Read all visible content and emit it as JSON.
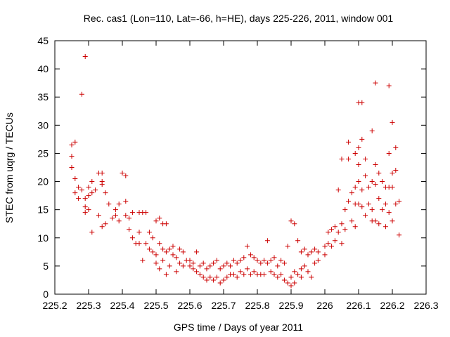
{
  "chart_data": {
    "type": "scatter",
    "title": "Rec. cas1 (Lon=110, Lat=-66, h=HE), days 225-226, 2011, window 001",
    "xlabel": "GPS time / Days of year 2011",
    "ylabel": "STEC from uqrg / TECUs",
    "xlim": [
      225.2,
      226.3
    ],
    "ylim": [
      0,
      45
    ],
    "xticks": [
      "225.2",
      "225.3",
      "225.4",
      "225.5",
      "225.6",
      "225.7",
      "225.8",
      "225.9",
      "226",
      "226.1",
      "226.2",
      "226.3"
    ],
    "yticks": [
      "0",
      "5",
      "10",
      "15",
      "20",
      "25",
      "30",
      "35",
      "40",
      "45"
    ],
    "grid": false,
    "marker": "plus",
    "color": "#cc0000",
    "series": [
      {
        "points": [
          [
            225.25,
            26.5
          ],
          [
            225.25,
            24.5
          ],
          [
            225.25,
            22.5
          ],
          [
            225.26,
            27
          ],
          [
            225.26,
            20.5
          ],
          [
            225.26,
            18
          ],
          [
            225.27,
            19
          ],
          [
            225.27,
            17
          ],
          [
            225.28,
            35.5
          ],
          [
            225.28,
            18.5
          ],
          [
            225.29,
            42.2
          ],
          [
            225.29,
            17
          ],
          [
            225.29,
            15.5
          ],
          [
            225.29,
            14.5
          ],
          [
            225.3,
            17.5
          ],
          [
            225.3,
            19
          ],
          [
            225.3,
            15
          ],
          [
            225.31,
            18
          ],
          [
            225.31,
            20
          ],
          [
            225.31,
            11
          ],
          [
            225.32,
            18.5
          ],
          [
            225.33,
            21.5
          ],
          [
            225.33,
            14
          ],
          [
            225.34,
            21.5
          ],
          [
            225.34,
            20
          ],
          [
            225.34,
            19.5
          ],
          [
            225.34,
            12
          ],
          [
            225.35,
            18
          ],
          [
            225.35,
            12.5
          ],
          [
            225.36,
            16
          ],
          [
            225.37,
            13.5
          ],
          [
            225.38,
            15
          ],
          [
            225.38,
            14
          ],
          [
            225.39,
            13
          ],
          [
            225.39,
            16
          ],
          [
            225.4,
            21.5
          ],
          [
            225.41,
            21
          ],
          [
            225.41,
            16.5
          ],
          [
            225.41,
            14
          ],
          [
            225.42,
            13.5
          ],
          [
            225.42,
            11.5
          ],
          [
            225.43,
            10
          ],
          [
            225.43,
            14.5
          ],
          [
            225.44,
            9
          ],
          [
            225.45,
            14.5
          ],
          [
            225.45,
            11
          ],
          [
            225.45,
            9
          ],
          [
            225.46,
            14.5
          ],
          [
            225.46,
            6
          ],
          [
            225.47,
            14.5
          ],
          [
            225.47,
            9
          ],
          [
            225.48,
            11
          ],
          [
            225.48,
            8
          ],
          [
            225.49,
            7.5
          ],
          [
            225.49,
            10
          ],
          [
            225.5,
            13
          ],
          [
            225.5,
            7
          ],
          [
            225.5,
            5.5
          ],
          [
            225.51,
            13.5
          ],
          [
            225.51,
            9
          ],
          [
            225.51,
            4.5
          ],
          [
            225.52,
            12.5
          ],
          [
            225.52,
            8
          ],
          [
            225.52,
            6
          ],
          [
            225.53,
            12.5
          ],
          [
            225.53,
            7.5
          ],
          [
            225.53,
            3.5
          ],
          [
            225.54,
            8
          ],
          [
            225.54,
            5
          ],
          [
            225.55,
            8.5
          ],
          [
            225.55,
            7
          ],
          [
            225.56,
            6.5
          ],
          [
            225.56,
            4
          ],
          [
            225.57,
            8
          ],
          [
            225.57,
            5.5
          ],
          [
            225.58,
            7.5
          ],
          [
            225.58,
            5
          ],
          [
            225.59,
            6
          ],
          [
            225.6,
            6
          ],
          [
            225.6,
            5
          ],
          [
            225.61,
            5.5
          ],
          [
            225.61,
            4.5
          ],
          [
            225.62,
            7.5
          ],
          [
            225.62,
            4
          ],
          [
            225.63,
            5
          ],
          [
            225.63,
            3.5
          ],
          [
            225.64,
            5.5
          ],
          [
            225.64,
            3
          ],
          [
            225.65,
            4.5
          ],
          [
            225.65,
            2.5
          ],
          [
            225.66,
            5
          ],
          [
            225.66,
            3
          ],
          [
            225.67,
            5.5
          ],
          [
            225.67,
            2.5
          ],
          [
            225.68,
            6
          ],
          [
            225.68,
            3
          ],
          [
            225.69,
            4.5
          ],
          [
            225.69,
            2
          ],
          [
            225.7,
            5
          ],
          [
            225.7,
            2.5
          ],
          [
            225.71,
            5.5
          ],
          [
            225.71,
            3
          ],
          [
            225.72,
            5
          ],
          [
            225.72,
            3.5
          ],
          [
            225.73,
            6
          ],
          [
            225.73,
            3.5
          ],
          [
            225.74,
            5.5
          ],
          [
            225.74,
            3
          ],
          [
            225.75,
            6
          ],
          [
            225.75,
            4
          ],
          [
            225.76,
            6.5
          ],
          [
            225.76,
            3.5
          ],
          [
            225.77,
            8.5
          ],
          [
            225.77,
            4.5
          ],
          [
            225.78,
            7
          ],
          [
            225.78,
            3.5
          ],
          [
            225.79,
            6.5
          ],
          [
            225.79,
            4
          ],
          [
            225.8,
            6
          ],
          [
            225.8,
            3.5
          ],
          [
            225.81,
            5.5
          ],
          [
            225.81,
            3.5
          ],
          [
            225.82,
            6
          ],
          [
            225.82,
            3.5
          ],
          [
            225.83,
            9.5
          ],
          [
            225.83,
            5.5
          ],
          [
            225.84,
            6
          ],
          [
            225.84,
            4
          ],
          [
            225.85,
            6.5
          ],
          [
            225.85,
            3.5
          ],
          [
            225.86,
            5
          ],
          [
            225.86,
            3
          ],
          [
            225.87,
            6
          ],
          [
            225.87,
            3.5
          ],
          [
            225.88,
            5.5
          ],
          [
            225.88,
            2.5
          ],
          [
            225.89,
            8.5
          ],
          [
            225.89,
            2
          ],
          [
            225.9,
            13
          ],
          [
            225.9,
            3
          ],
          [
            225.9,
            1.5
          ],
          [
            225.91,
            12.5
          ],
          [
            225.91,
            4
          ],
          [
            225.91,
            2
          ],
          [
            225.92,
            9.5
          ],
          [
            225.92,
            3.5
          ],
          [
            225.93,
            7.5
          ],
          [
            225.93,
            4.5
          ],
          [
            225.93,
            3
          ],
          [
            225.94,
            8
          ],
          [
            225.94,
            5
          ],
          [
            225.95,
            7
          ],
          [
            225.95,
            4
          ],
          [
            225.96,
            7.5
          ],
          [
            225.96,
            3
          ],
          [
            225.97,
            8
          ],
          [
            225.97,
            5.5
          ],
          [
            225.98,
            7.5
          ],
          [
            225.98,
            6
          ],
          [
            226.0,
            8.5
          ],
          [
            226.0,
            7
          ],
          [
            226.01,
            11
          ],
          [
            226.01,
            9
          ],
          [
            226.02,
            11.5
          ],
          [
            226.02,
            8.5
          ],
          [
            226.03,
            12
          ],
          [
            226.03,
            9.5
          ],
          [
            226.04,
            18.5
          ],
          [
            226.04,
            11
          ],
          [
            226.05,
            24
          ],
          [
            226.05,
            12.5
          ],
          [
            226.05,
            9
          ],
          [
            226.06,
            15
          ],
          [
            226.06,
            11.5
          ],
          [
            226.07,
            27
          ],
          [
            226.07,
            24
          ],
          [
            226.07,
            16.5
          ],
          [
            226.08,
            18
          ],
          [
            226.08,
            13
          ],
          [
            226.09,
            25
          ],
          [
            226.09,
            19
          ],
          [
            226.09,
            16
          ],
          [
            226.09,
            12
          ],
          [
            226.1,
            34
          ],
          [
            226.1,
            26
          ],
          [
            226.1,
            23
          ],
          [
            226.1,
            20
          ],
          [
            226.1,
            16
          ],
          [
            226.11,
            34
          ],
          [
            226.11,
            27.5
          ],
          [
            226.11,
            18.5
          ],
          [
            226.11,
            15.5
          ],
          [
            226.12,
            24
          ],
          [
            226.12,
            21
          ],
          [
            226.12,
            14
          ],
          [
            226.13,
            19
          ],
          [
            226.13,
            16
          ],
          [
            226.14,
            29
          ],
          [
            226.14,
            20
          ],
          [
            226.14,
            15
          ],
          [
            226.14,
            13
          ],
          [
            226.15,
            37.5
          ],
          [
            226.15,
            23
          ],
          [
            226.15,
            19.5
          ],
          [
            226.15,
            13
          ],
          [
            226.16,
            21.5
          ],
          [
            226.16,
            17
          ],
          [
            226.16,
            12.5
          ],
          [
            226.17,
            20
          ],
          [
            226.17,
            15
          ],
          [
            226.18,
            19
          ],
          [
            226.18,
            16
          ],
          [
            226.18,
            12
          ],
          [
            226.19,
            37
          ],
          [
            226.19,
            25
          ],
          [
            226.19,
            19
          ],
          [
            226.19,
            14.5
          ],
          [
            226.2,
            30.5
          ],
          [
            226.2,
            21.5
          ],
          [
            226.2,
            19
          ],
          [
            226.2,
            13
          ],
          [
            226.21,
            26
          ],
          [
            226.21,
            22
          ],
          [
            226.21,
            16
          ],
          [
            226.22,
            16.5
          ],
          [
            226.22,
            10.5
          ]
        ]
      }
    ]
  }
}
